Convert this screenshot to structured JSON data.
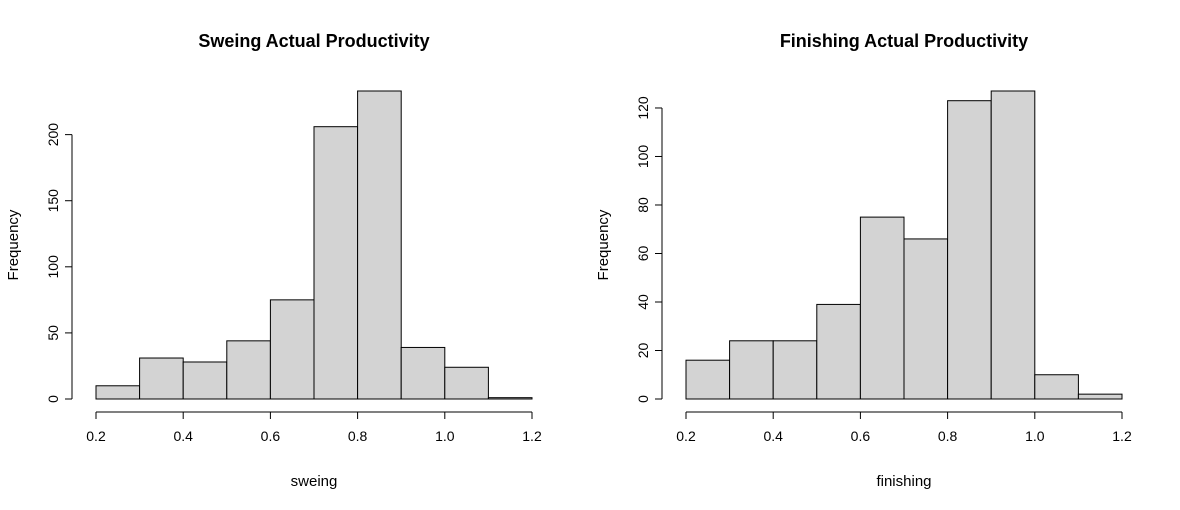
{
  "chart_data": [
    {
      "type": "bar",
      "title": "Sweing Actual Productivity",
      "xlabel": "sweing",
      "ylabel": "Frequency",
      "bin_edges": [
        0.2,
        0.3,
        0.4,
        0.5,
        0.6,
        0.7,
        0.8,
        0.9,
        1.0,
        1.1,
        1.2
      ],
      "values": [
        10,
        31,
        28,
        44,
        75,
        206,
        233,
        39,
        24,
        1
      ],
      "xlim": [
        0.2,
        1.2
      ],
      "ylim": [
        0,
        233
      ],
      "x_ticks": [
        "0.2",
        "0.4",
        "0.6",
        "0.8",
        "1.0",
        "1.2"
      ],
      "y_ticks": [
        "0",
        "50",
        "100",
        "150",
        "200"
      ],
      "bar_color": "#d3d3d3"
    },
    {
      "type": "bar",
      "title": "Finishing Actual Productivity",
      "xlabel": "finishing",
      "ylabel": "Frequency",
      "bin_edges": [
        0.2,
        0.3,
        0.4,
        0.5,
        0.6,
        0.7,
        0.8,
        0.9,
        1.0,
        1.1,
        1.2
      ],
      "values": [
        16,
        24,
        24,
        39,
        75,
        66,
        123,
        127,
        10,
        2
      ],
      "xlim": [
        0.2,
        1.2
      ],
      "ylim": [
        0,
        127
      ],
      "x_ticks": [
        "0.2",
        "0.4",
        "0.6",
        "0.8",
        "1.0",
        "1.2"
      ],
      "y_ticks": [
        "0",
        "20",
        "40",
        "60",
        "80",
        "100",
        "120"
      ],
      "bar_color": "#d3d3d3"
    }
  ]
}
